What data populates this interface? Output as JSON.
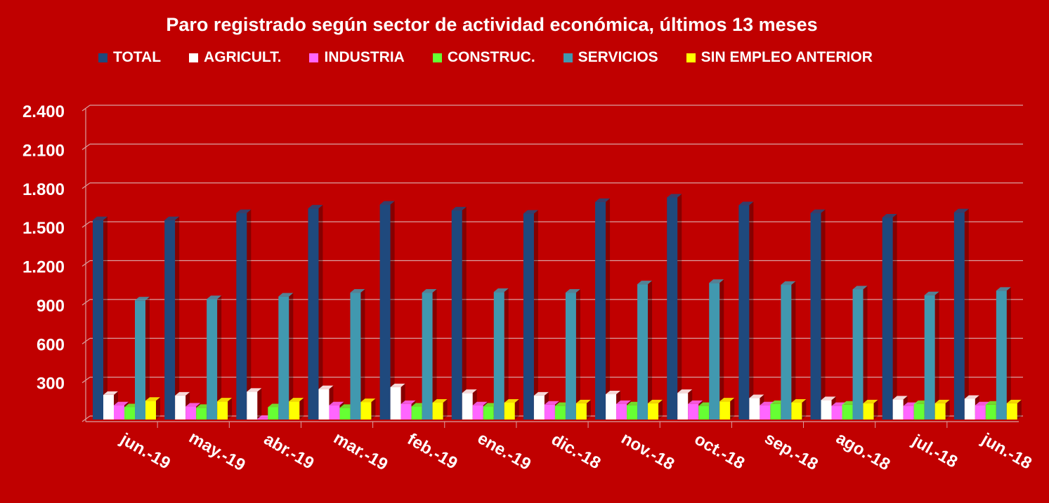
{
  "chart_data": {
    "type": "bar",
    "title": "Paro registrado según sector de actividad económica, últimos 13 meses",
    "categories": [
      "jun.-19",
      "may.-19",
      "abr.-19",
      "mar.-19",
      "feb.-19",
      "ene.-19",
      "dic.-18",
      "nov.-18",
      "oct.-18",
      "sep.-18",
      "ago.-18",
      "jul.-18",
      "jun.-18"
    ],
    "series": [
      {
        "name": "TOTAL",
        "color": "#1F497D",
        "values": [
          1540,
          1540,
          1595,
          1630,
          1660,
          1615,
          1590,
          1680,
          1715,
          1655,
          1595,
          1560,
          1600
        ]
      },
      {
        "name": "AGRICULT.",
        "color": "#FFFFFF",
        "values": [
          190,
          185,
          215,
          235,
          250,
          205,
          185,
          195,
          205,
          165,
          150,
          155,
          160
        ]
      },
      {
        "name": "INDUSTRIA",
        "color": "#FF66FF",
        "values": [
          110,
          100,
          5,
          110,
          120,
          110,
          115,
          120,
          120,
          110,
          105,
          105,
          110
        ]
      },
      {
        "name": "CONSTRUC.",
        "color": "#66FF33",
        "values": [
          95,
          90,
          95,
          90,
          100,
          100,
          105,
          110,
          105,
          120,
          115,
          120,
          115
        ]
      },
      {
        "name": "SERVICIOS",
        "color": "#4198AF",
        "values": [
          920,
          930,
          950,
          980,
          980,
          985,
          980,
          1045,
          1055,
          1040,
          1005,
          960,
          995
        ]
      },
      {
        "name": "SIN EMPLEO ANTERIOR",
        "color": "#FFFF00",
        "values": [
          145,
          140,
          140,
          135,
          130,
          130,
          125,
          125,
          140,
          130,
          125,
          125,
          125
        ]
      }
    ],
    "yticks": [
      "2.400",
      "2.100",
      "1.800",
      "1.500",
      "1.200",
      "900",
      "600",
      "300",
      ""
    ],
    "ylim": [
      0,
      2400
    ],
    "grid": true,
    "legend": "top",
    "background": "#C00000"
  }
}
